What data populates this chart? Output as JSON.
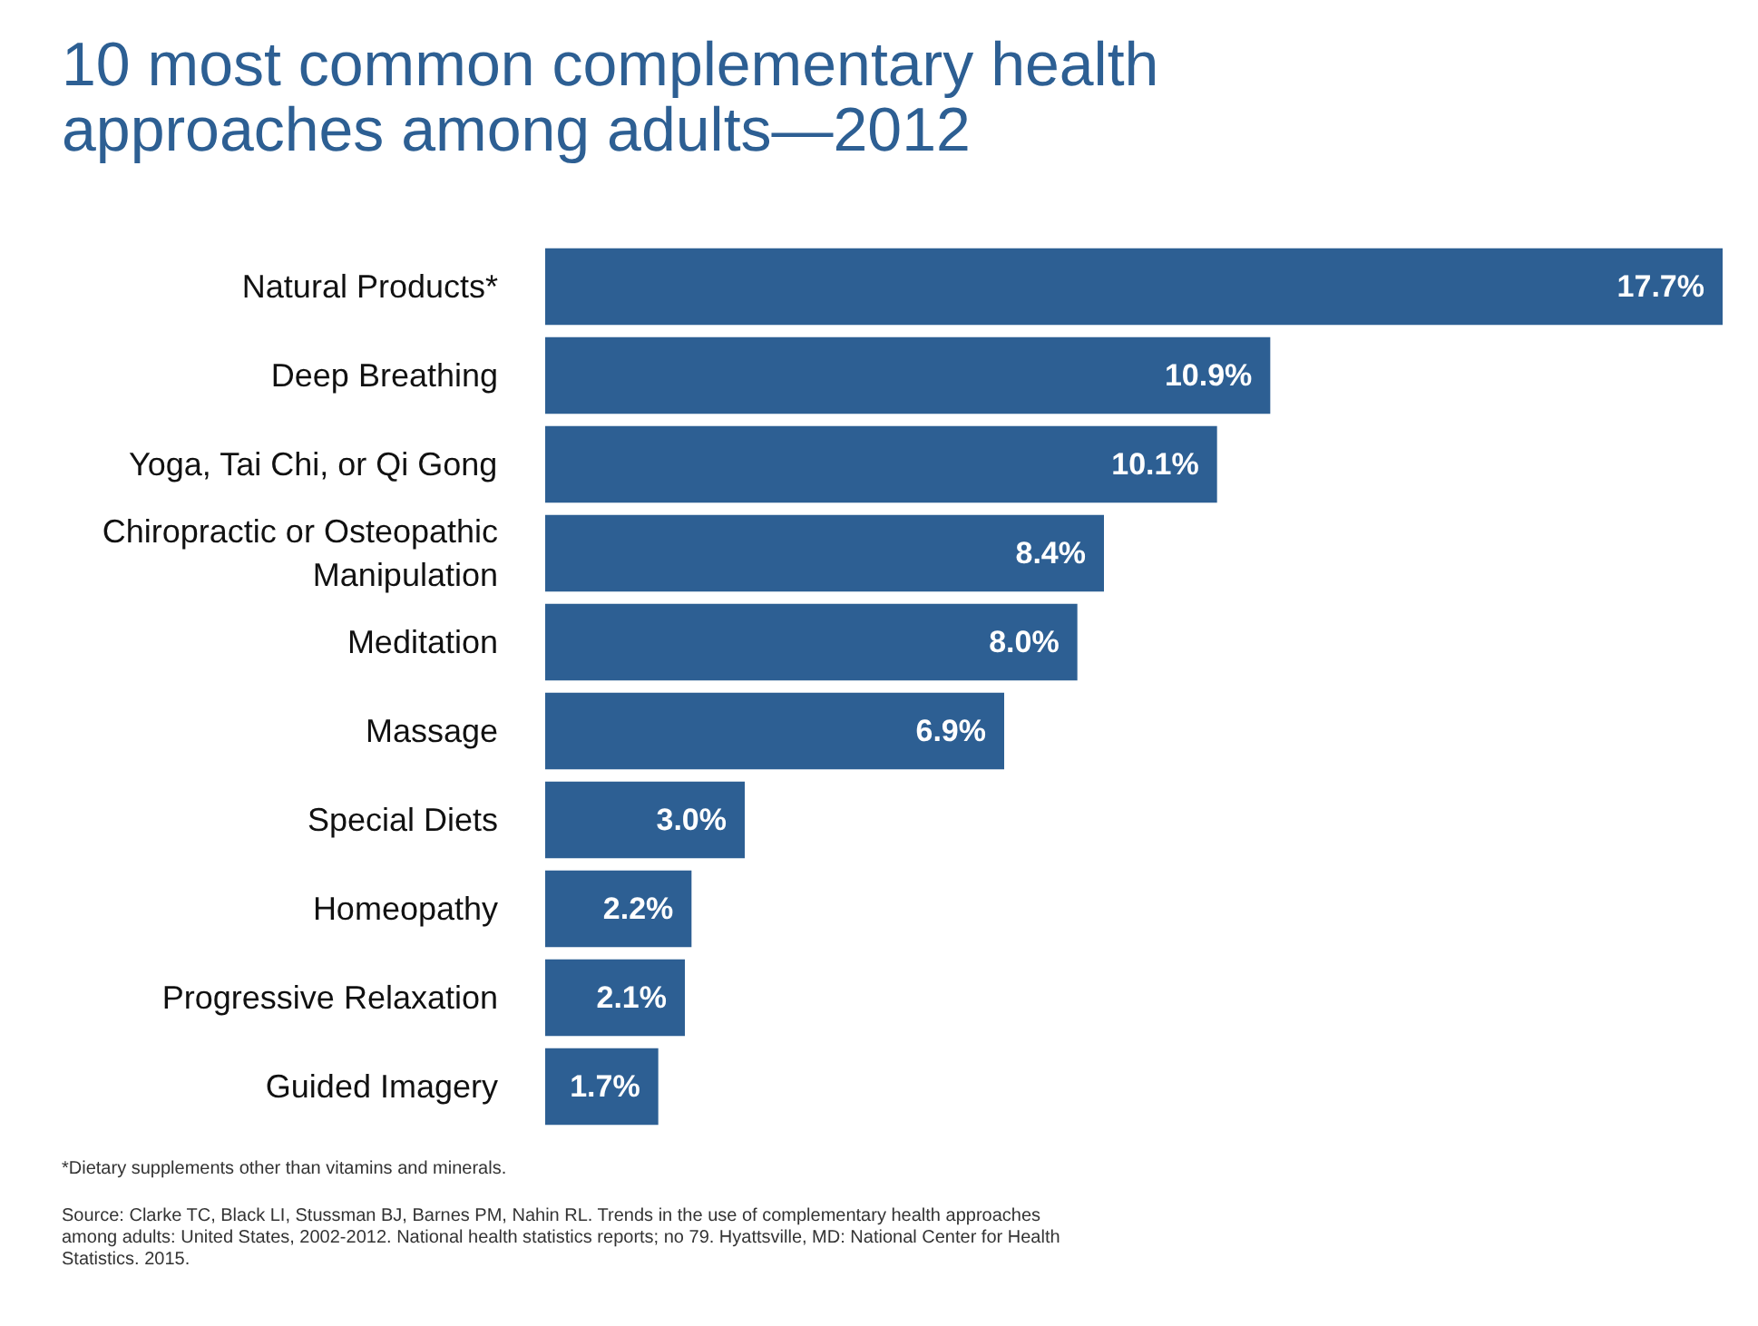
{
  "chart_data": {
    "type": "bar",
    "orientation": "horizontal",
    "title": "10 most common complementary health approaches among adults—2012",
    "categories": [
      "Natural Products*",
      "Deep Breathing",
      "Yoga, Tai Chi, or Qi Gong",
      "Chiropractic or Osteopathic Manipulation",
      "Meditation",
      "Massage",
      "Special Diets",
      "Homeopathy",
      "Progressive Relaxation",
      "Guided Imagery"
    ],
    "values": [
      17.7,
      10.9,
      10.1,
      8.4,
      8.0,
      6.9,
      3.0,
      2.2,
      2.1,
      1.7
    ],
    "value_labels": [
      "17.7%",
      "10.9%",
      "10.1%",
      "8.4%",
      "8.0%",
      "6.9%",
      "3.0%",
      "2.2%",
      "2.1%",
      "1.7%"
    ],
    "color": "#2d5f93",
    "annotations": [
      "*Dietary supplements other than vitamins and minerals.",
      "Source: Clarke TC, Black LI, Stussman BJ, Barnes PM, Nahin RL. Trends in the use of complementary health approaches among adults: United States, 2002-2012. National health statistics reports; no 79. Hyattsville, MD: National Center for Health Statistics. 2015."
    ]
  }
}
